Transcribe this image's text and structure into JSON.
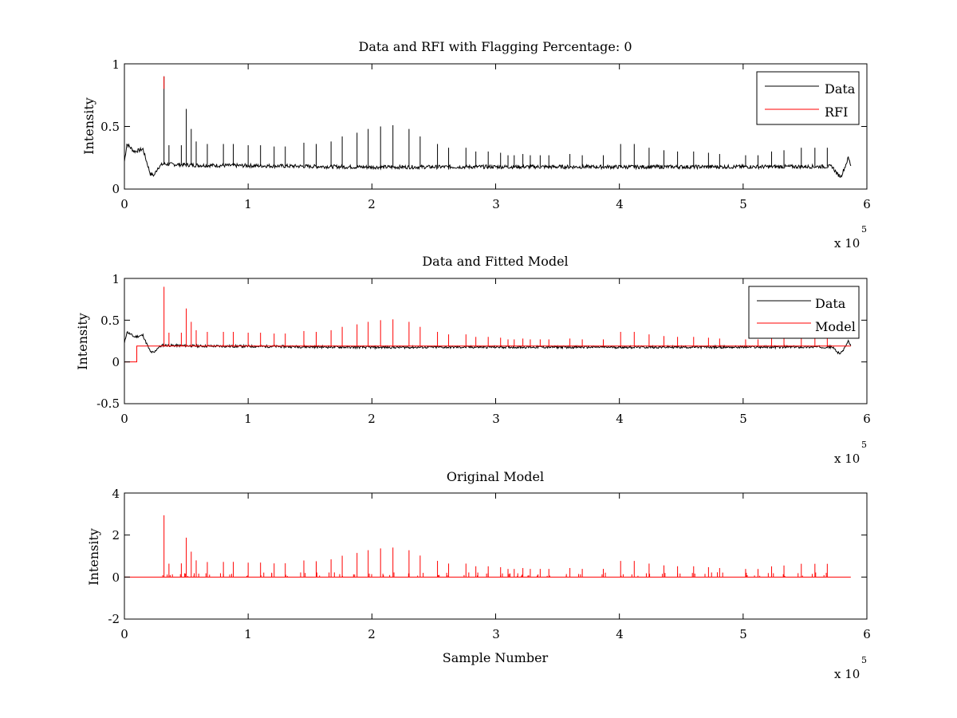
{
  "chart_data": [
    {
      "type": "line",
      "title": "Data and RFI with Flagging Percentage: 0",
      "xlabel": "",
      "ylabel": "Intensity",
      "xlim": [
        0,
        600000
      ],
      "ylim": [
        0,
        1
      ],
      "xticks": [
        "0",
        "1",
        "2",
        "3",
        "4",
        "5",
        "6"
      ],
      "yticks": [
        "0",
        "0.5",
        "1"
      ],
      "x_exponent": {
        "prefix": "x 10",
        "power": "5"
      },
      "legend_position": "top-right",
      "baseline": [
        [
          0,
          0.22
        ],
        [
          2000,
          0.36
        ],
        [
          5000,
          0.33
        ],
        [
          8000,
          0.3
        ],
        [
          12000,
          0.31
        ],
        [
          15000,
          0.32
        ],
        [
          17000,
          0.25
        ],
        [
          21000,
          0.12
        ],
        [
          24000,
          0.11
        ],
        [
          27000,
          0.17
        ],
        [
          31000,
          0.2
        ],
        [
          60000,
          0.19
        ],
        [
          120000,
          0.185
        ],
        [
          200000,
          0.175
        ],
        [
          300000,
          0.178
        ],
        [
          400000,
          0.177
        ],
        [
          500000,
          0.178
        ],
        [
          572000,
          0.18
        ],
        [
          576000,
          0.12
        ],
        [
          579000,
          0.1
        ],
        [
          582000,
          0.17
        ],
        [
          585000,
          0.25
        ],
        [
          587000,
          0.19
        ]
      ],
      "spikes": [
        [
          32000,
          0.9
        ],
        [
          36000,
          0.35
        ],
        [
          46000,
          0.35
        ],
        [
          50000,
          0.64
        ],
        [
          54000,
          0.48
        ],
        [
          58000,
          0.38
        ],
        [
          67000,
          0.36
        ],
        [
          80000,
          0.36
        ],
        [
          88000,
          0.36
        ],
        [
          100000,
          0.35
        ],
        [
          110000,
          0.35
        ],
        [
          121000,
          0.34
        ],
        [
          130000,
          0.34
        ],
        [
          145000,
          0.37
        ],
        [
          155000,
          0.36
        ],
        [
          167000,
          0.38
        ],
        [
          176000,
          0.42
        ],
        [
          188000,
          0.45
        ],
        [
          197000,
          0.48
        ],
        [
          207000,
          0.5
        ],
        [
          217000,
          0.51
        ],
        [
          230000,
          0.48
        ],
        [
          239000,
          0.42
        ],
        [
          253000,
          0.36
        ],
        [
          262000,
          0.33
        ],
        [
          276000,
          0.33
        ],
        [
          284000,
          0.3
        ],
        [
          294000,
          0.3
        ],
        [
          304000,
          0.29
        ],
        [
          310000,
          0.27
        ],
        [
          315000,
          0.27
        ],
        [
          322000,
          0.28
        ],
        [
          328000,
          0.27
        ],
        [
          336000,
          0.27
        ],
        [
          343000,
          0.27
        ],
        [
          360000,
          0.28
        ],
        [
          370000,
          0.27
        ],
        [
          387000,
          0.27
        ],
        [
          401000,
          0.36
        ],
        [
          412000,
          0.36
        ],
        [
          424000,
          0.33
        ],
        [
          436000,
          0.31
        ],
        [
          447000,
          0.3
        ],
        [
          460000,
          0.3
        ],
        [
          472000,
          0.29
        ],
        [
          481000,
          0.28
        ],
        [
          502000,
          0.27
        ],
        [
          512000,
          0.27
        ],
        [
          523000,
          0.3
        ],
        [
          533000,
          0.31
        ],
        [
          547000,
          0.33
        ],
        [
          558000,
          0.33
        ],
        [
          568000,
          0.33
        ]
      ],
      "series": [
        {
          "name": "Data",
          "color": "#000000"
        },
        {
          "name": "RFI",
          "color": "#ff0000"
        }
      ]
    },
    {
      "type": "line",
      "title": "Data and Fitted Model",
      "xlabel": "",
      "ylabel": "Intensity",
      "xlim": [
        0,
        600000
      ],
      "ylim": [
        -0.5,
        1
      ],
      "xticks": [
        "0",
        "1",
        "2",
        "3",
        "4",
        "5",
        "6"
      ],
      "yticks": [
        "-0.5",
        "0",
        "0.5",
        "1"
      ],
      "x_exponent": {
        "prefix": "x 10",
        "power": "5"
      },
      "legend_position": "top-right",
      "model_step": [
        [
          0,
          0.0
        ],
        [
          10000,
          0.0
        ],
        [
          10000,
          0.19
        ],
        [
          587000,
          0.19
        ]
      ],
      "series": [
        {
          "name": "Data",
          "color": "#000000"
        },
        {
          "name": "Model",
          "color": "#ff0000"
        }
      ]
    },
    {
      "type": "line",
      "title": "Original Model",
      "xlabel": "Sample Number",
      "ylabel": "Intensity",
      "xlim": [
        0,
        600000
      ],
      "ylim": [
        -2,
        4
      ],
      "xticks": [
        "0",
        "1",
        "2",
        "3",
        "4",
        "5",
        "6"
      ],
      "yticks": [
        "-2",
        "0",
        "2",
        "4"
      ],
      "x_exponent": {
        "prefix": "x 10",
        "power": "5"
      },
      "spike_scale": 4.0,
      "series": [
        {
          "color": "#ff0000"
        }
      ]
    }
  ]
}
